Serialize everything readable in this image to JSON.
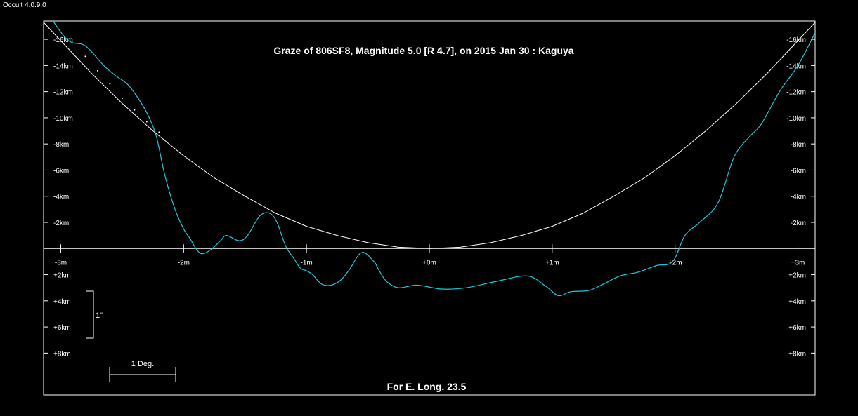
{
  "app": {
    "title": "Occult 4.0.9.0"
  },
  "chart_data": {
    "type": "line",
    "title": "Graze of  806SF8,  Magnitude 5.0 [R 4.7],  on 2015 Jan 30  :  Kaguya",
    "footer": "For E. Long. 23.5",
    "x_ticks": [
      {
        "v": -3,
        "label": "-3m"
      },
      {
        "v": -2,
        "label": "-2m"
      },
      {
        "v": -1,
        "label": "-1m"
      },
      {
        "v": 0,
        "label": "+0m"
      },
      {
        "v": 1,
        "label": "+1m"
      },
      {
        "v": 2,
        "label": "+2m"
      },
      {
        "v": 3,
        "label": "+3m"
      }
    ],
    "y_ticks": [
      {
        "v": -16,
        "label": "-16km"
      },
      {
        "v": -14,
        "label": "-14km"
      },
      {
        "v": -12,
        "label": "-12km"
      },
      {
        "v": -10,
        "label": "-10km"
      },
      {
        "v": -8,
        "label": "-8km"
      },
      {
        "v": -6,
        "label": "-6km"
      },
      {
        "v": -4,
        "label": "-4km"
      },
      {
        "v": -2,
        "label": "-2km"
      },
      {
        "v": 2,
        "label": "+2km"
      },
      {
        "v": 4,
        "label": "+4km"
      },
      {
        "v": 6,
        "label": "+6km"
      },
      {
        "v": 8,
        "label": "+8km"
      }
    ],
    "xlim": [
      -3.14,
      3.14
    ],
    "ylim": [
      -17.4,
      11.2
    ],
    "scale_bars": {
      "vertical_label": "1\"",
      "horizontal_label": "1 Deg."
    },
    "colors": {
      "profile": "#1ec8d8",
      "limb": "#ffffff",
      "axes": "#ffffff",
      "background": "#000000"
    },
    "series": [
      {
        "kind": "limb",
        "x": [
          -3.14,
          -3.0,
          -2.75,
          -2.5,
          -2.25,
          -2.0,
          -1.75,
          -1.5,
          -1.25,
          -1.0,
          -0.75,
          -0.5,
          -0.25,
          0.0,
          0.25,
          0.5,
          0.75,
          1.0,
          1.25,
          1.5,
          1.75,
          2.0,
          2.25,
          2.5,
          2.75,
          3.0,
          3.14
        ],
        "y": [
          -17.3,
          -15.9,
          -13.4,
          -11.1,
          -9.0,
          -7.1,
          -5.4,
          -4.0,
          -2.7,
          -1.7,
          -1.0,
          -0.45,
          -0.1,
          0.0,
          -0.1,
          -0.45,
          -1.0,
          -1.7,
          -2.7,
          -4.0,
          -5.4,
          -7.1,
          -9.0,
          -11.1,
          -13.4,
          -15.9,
          -17.3
        ]
      },
      {
        "kind": "profile",
        "x": [
          -3.14,
          -2.95,
          -2.8,
          -2.65,
          -2.55,
          -2.45,
          -2.35,
          -2.28,
          -2.22,
          -2.15,
          -2.07,
          -2.0,
          -1.95,
          -1.9,
          -1.85,
          -1.78,
          -1.7,
          -1.65,
          -1.55,
          -1.48,
          -1.38,
          -1.3,
          -1.24,
          -1.17,
          -1.1,
          -1.05,
          -1.0,
          -0.95,
          -0.88,
          -0.8,
          -0.72,
          -0.65,
          -0.55,
          -0.45,
          -0.42,
          -0.35,
          -0.25,
          -0.1,
          0.1,
          0.3,
          0.55,
          0.8,
          0.95,
          1.05,
          1.15,
          1.3,
          1.42,
          1.55,
          1.7,
          1.85,
          1.98,
          2.08,
          2.2,
          2.35,
          2.48,
          2.6,
          2.7,
          2.85,
          3.0,
          3.14
        ],
        "y": [
          -18.5,
          -16.0,
          -15.5,
          -14.0,
          -13.2,
          -12.5,
          -11.2,
          -10.0,
          -8.5,
          -5.5,
          -3.0,
          -1.5,
          -0.8,
          0.0,
          0.4,
          0.1,
          -0.6,
          -1.0,
          -0.6,
          -1.0,
          -2.5,
          -2.7,
          -2.0,
          -0.2,
          0.8,
          1.5,
          1.7,
          2.0,
          2.7,
          2.8,
          2.4,
          1.6,
          0.3,
          1.0,
          1.5,
          2.5,
          3.0,
          2.8,
          3.1,
          3.0,
          2.5,
          2.1,
          2.9,
          3.6,
          3.3,
          3.2,
          2.7,
          2.1,
          1.8,
          1.3,
          1.0,
          -1.0,
          -2.0,
          -3.5,
          -7.0,
          -8.5,
          -9.5,
          -12.0,
          -14.0,
          -16.5
        ]
      },
      {
        "kind": "dots",
        "x": [
          -2.8,
          -2.7,
          -2.6,
          -2.5,
          -2.4,
          -2.3,
          -2.2
        ],
        "y": [
          -14.7,
          -13.6,
          -12.6,
          -11.5,
          -10.6,
          -9.7,
          -8.9
        ]
      }
    ]
  }
}
